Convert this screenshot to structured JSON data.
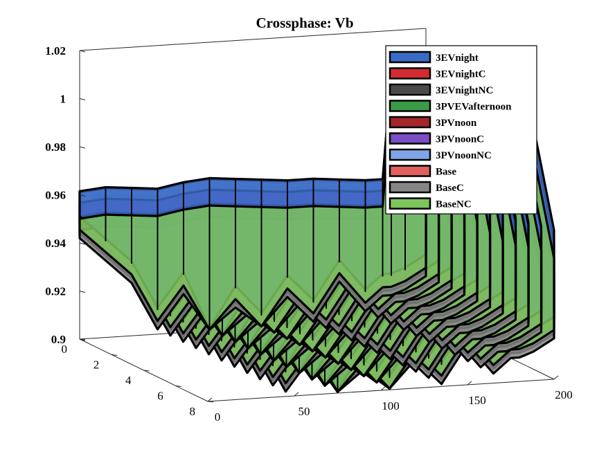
{
  "chart_data": {
    "type": "3d-ribbon",
    "title": "Crossphase: Vb",
    "xlabel": "",
    "ylabel": "",
    "zlabel": "",
    "x_ticks": [
      "0",
      "50",
      "100",
      "150",
      "200"
    ],
    "y_ticks": [
      "0",
      "2",
      "4",
      "6",
      "8"
    ],
    "z_ticks": [
      "0.9",
      "0.92",
      "0.94",
      "0.96",
      "0.98",
      "1",
      "1.02"
    ],
    "xlim": [
      0,
      200
    ],
    "ylim": [
      0,
      8
    ],
    "zlim": [
      0.9,
      1.02
    ],
    "grid": false,
    "legend_position": "top-right",
    "series": [
      {
        "name": "3EVnight",
        "color": "#3a6bc4"
      },
      {
        "name": "3EVnightC",
        "color": "#d42a33"
      },
      {
        "name": "3EVnightNC",
        "color": "#4a4a4a"
      },
      {
        "name": "3PVEVafternoon",
        "color": "#3a9a45"
      },
      {
        "name": "3PVnoon",
        "color": "#a3262d"
      },
      {
        "name": "3PVnoonC",
        "color": "#7a4ec4"
      },
      {
        "name": "3PVnoonNC",
        "color": "#7fa5e6"
      },
      {
        "name": "Base",
        "color": "#e06060"
      },
      {
        "name": "BaseC",
        "color": "#868686"
      },
      {
        "name": "BaseNC",
        "color": "#7cc45c"
      }
    ],
    "profile": {
      "x": [
        0,
        15,
        30,
        45,
        60,
        75,
        90,
        105,
        120,
        135,
        150,
        165,
        175,
        180,
        188,
        200
      ],
      "z_upper": [
        0.961,
        0.962,
        0.961,
        0.96,
        0.962,
        0.963,
        0.962,
        0.961,
        0.96,
        0.96,
        0.959,
        0.958,
        0.958,
        1.002,
        1.002,
        0.958
      ],
      "z_lower": [
        0.95,
        0.94,
        0.93,
        0.91,
        0.924,
        0.9,
        0.917,
        0.905,
        0.92,
        0.909,
        0.925,
        0.912,
        0.918,
        0.918,
        0.92,
        0.925
      ]
    }
  }
}
